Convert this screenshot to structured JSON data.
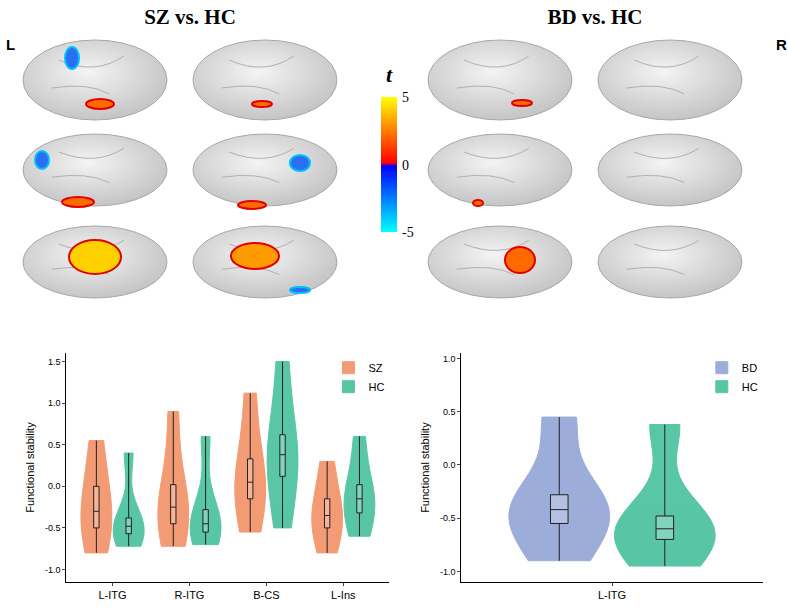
{
  "panels": [
    {
      "title": "SZ vs. HC",
      "hemisphere_label": "L"
    },
    {
      "title": "BD vs. HC",
      "hemisphere_label": "R"
    }
  ],
  "colorbar": {
    "title": "t",
    "range": [
      -5,
      5
    ],
    "ticks": [
      5,
      0,
      -5
    ],
    "colors": [
      "#00ffff",
      "#0000ff",
      "#ff0000",
      "#ffff00"
    ]
  },
  "chart_data": [
    {
      "type": "violin",
      "ylabel": "Functional stability",
      "ylim": [
        -1.15,
        1.6
      ],
      "yticks": [
        {
          "value": -1,
          "label": "-1.0"
        },
        {
          "value": -0.5,
          "label": "-0.5"
        },
        {
          "value": 0,
          "label": "0.0"
        },
        {
          "value": 0.5,
          "label": "0.5"
        },
        {
          "value": 1,
          "label": "1.0"
        },
        {
          "value": 1.5,
          "label": "1.5"
        }
      ],
      "categories": [
        "L-ITG",
        "R-ITG",
        "B-CS",
        "L-Ins"
      ],
      "legend": "upper right",
      "series": [
        {
          "name": "SZ",
          "color": "#f08a5d",
          "min": [
            -0.8,
            -0.72,
            -0.55,
            -0.8
          ],
          "q1": [
            -0.5,
            -0.45,
            -0.15,
            -0.5
          ],
          "median": [
            -0.3,
            -0.25,
            0.05,
            -0.35
          ],
          "q3": [
            0.0,
            0.02,
            0.33,
            -0.15
          ],
          "max": [
            0.55,
            0.9,
            1.12,
            0.3
          ]
        },
        {
          "name": "HC",
          "color": "#3cbc96",
          "min": [
            -0.72,
            -0.7,
            -0.5,
            -0.6
          ],
          "q1": [
            -0.57,
            -0.55,
            0.12,
            -0.32
          ],
          "median": [
            -0.48,
            -0.45,
            0.38,
            -0.15
          ],
          "q3": [
            -0.38,
            -0.28,
            0.62,
            0.02
          ],
          "max": [
            0.4,
            0.6,
            1.5,
            0.6
          ]
        }
      ]
    },
    {
      "type": "violin",
      "ylabel": "Functional stability",
      "ylim": [
        -1.1,
        1.05
      ],
      "yticks": [
        {
          "value": -1,
          "label": "-1.0"
        },
        {
          "value": -0.5,
          "label": "-0.5"
        },
        {
          "value": 0,
          "label": "0.0"
        },
        {
          "value": 0.5,
          "label": "0.5"
        },
        {
          "value": 1,
          "label": "1.0"
        }
      ],
      "categories": [
        "L-ITG"
      ],
      "legend": "upper right",
      "series": [
        {
          "name": "BD",
          "color": "#8c9fd4",
          "min": [
            -0.9
          ],
          "q1": [
            -0.55
          ],
          "median": [
            -0.42
          ],
          "q3": [
            -0.28
          ],
          "max": [
            0.45
          ]
        },
        {
          "name": "HC",
          "color": "#3cbc96",
          "min": [
            -0.95
          ],
          "q1": [
            -0.7
          ],
          "median": [
            -0.6
          ],
          "q3": [
            -0.48
          ],
          "max": [
            0.38
          ]
        }
      ]
    }
  ]
}
